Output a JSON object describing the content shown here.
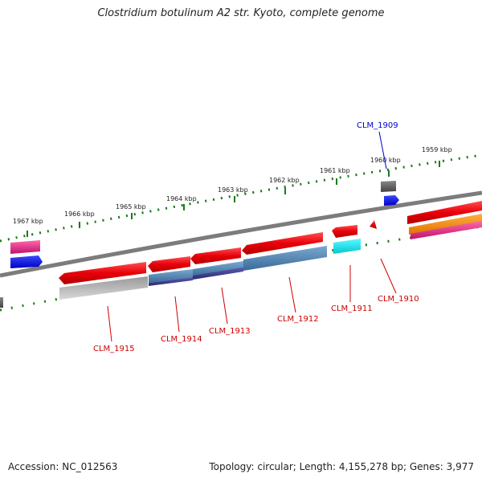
{
  "title": "Clostridium botulinum A2 str. Kyoto, complete genome",
  "footer": {
    "accession": "Accession: NC_012563",
    "stats": "Topology: circular; Length: 4,155,278 bp; Genes: 3,977"
  },
  "ticks": [
    "1967 kbp",
    "1966 kbp",
    "1965 kbp",
    "1964 kbp",
    "1963 kbp",
    "1962 kbp",
    "1961 kbp",
    "1960 kbp",
    "1959 kbp"
  ],
  "genes": [
    {
      "label": "CLM_1909",
      "color": "#0000cc"
    },
    {
      "label": "CLM_1910",
      "color": "#cc0000"
    },
    {
      "label": "CLM_1911",
      "color": "#cc0000"
    },
    {
      "label": "CLM_1912",
      "color": "#cc0000"
    },
    {
      "label": "CLM_1913",
      "color": "#cc0000"
    },
    {
      "label": "CLM_1914",
      "color": "#cc0000"
    },
    {
      "label": "CLM_1915",
      "color": "#cc0000"
    }
  ],
  "colors": {
    "backbone": "#808080",
    "tick": "#1a7a1a",
    "red_feature": "#e8000a",
    "blue_feature": "#4a7fb0",
    "navy_feature": "#3a3a8a",
    "gray_feature": "#b8b8b8",
    "cyan_feature": "#00e0e8",
    "pink_feature": "#e0207a",
    "orange_feature": "#ff8c00",
    "dark_feature": "#555555",
    "bright_blue_feature": "#0010ff"
  }
}
